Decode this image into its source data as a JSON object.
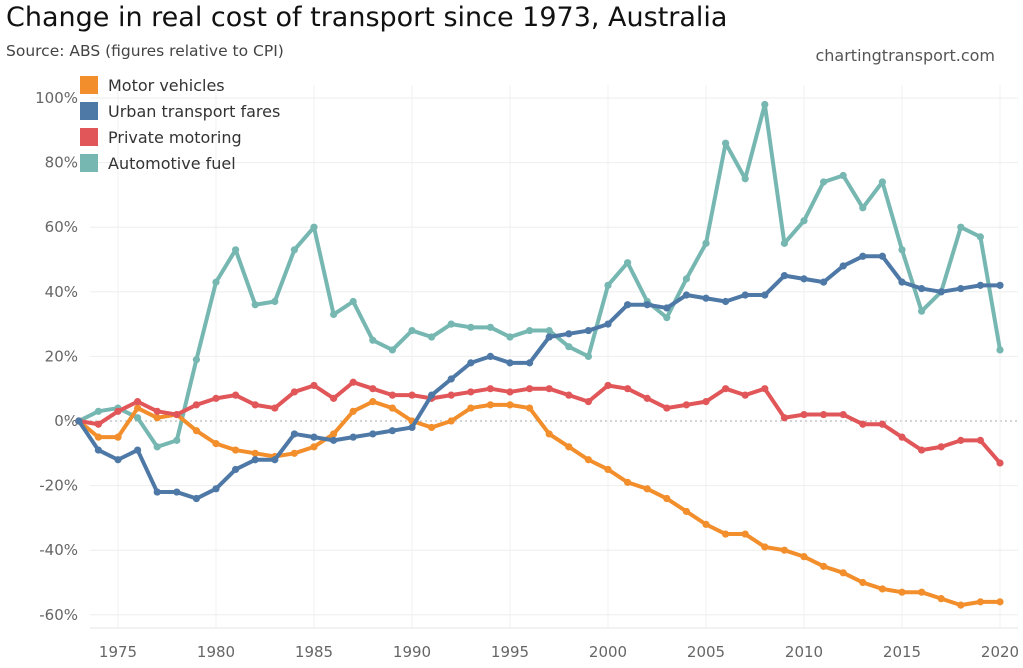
{
  "header": {
    "title": "Change in real cost of transport since 1973, Australia",
    "subtitle": "Source: ABS (figures relative to CPI)",
    "credit": "chartingtransport.com"
  },
  "chart_data": {
    "type": "line",
    "title": "Change in real cost of transport since 1973, Australia",
    "subtitle": "Source: ABS (figures relative to CPI)",
    "xlabel": "",
    "ylabel": "",
    "xlim": [
      1973,
      2020
    ],
    "ylim": [
      -60,
      100
    ],
    "x_ticks": [
      "1975",
      "1980",
      "1985",
      "1990",
      "1995",
      "2000",
      "2005",
      "2010",
      "2015",
      "2020"
    ],
    "y_ticks": [
      "100%",
      "80%",
      "60%",
      "40%",
      "20%",
      "0%",
      "-20%",
      "-40%",
      "-60%"
    ],
    "grid": true,
    "legend_position": "top-left",
    "x": [
      1973,
      1974,
      1975,
      1976,
      1977,
      1978,
      1979,
      1980,
      1981,
      1982,
      1983,
      1984,
      1985,
      1986,
      1987,
      1988,
      1989,
      1990,
      1991,
      1992,
      1993,
      1994,
      1995,
      1996,
      1997,
      1998,
      1999,
      2000,
      2001,
      2002,
      2003,
      2004,
      2005,
      2006,
      2007,
      2008,
      2009,
      2010,
      2011,
      2012,
      2013,
      2014,
      2015,
      2016,
      2017,
      2018,
      2019,
      2020
    ],
    "series": [
      {
        "name": "Motor vehicles",
        "color": "#f28e2b",
        "values": [
          0,
          -5,
          -5,
          4,
          1,
          2,
          -3,
          -7,
          -9,
          -10,
          -11,
          -10,
          -8,
          -4,
          3,
          6,
          4,
          0,
          -2,
          0,
          4,
          5,
          5,
          4,
          -4,
          -8,
          -12,
          -15,
          -19,
          -21,
          -24,
          -28,
          -32,
          -35,
          -35,
          -39,
          -40,
          -42,
          -45,
          -47,
          -50,
          -52,
          -53,
          -53,
          -55,
          -57,
          -56,
          -56
        ]
      },
      {
        "name": "Urban transport fares",
        "color": "#4e79a7",
        "values": [
          0,
          -9,
          -12,
          -9,
          -22,
          -22,
          -24,
          -21,
          -15,
          -12,
          -12,
          -4,
          -5,
          -6,
          -5,
          -4,
          -3,
          -2,
          8,
          13,
          18,
          20,
          18,
          18,
          26,
          27,
          28,
          30,
          36,
          36,
          35,
          39,
          38,
          37,
          39,
          39,
          45,
          44,
          43,
          48,
          51,
          51,
          43,
          41,
          40,
          41,
          42,
          42
        ]
      },
      {
        "name": "Private motoring",
        "color": "#e15759",
        "values": [
          0,
          -1,
          3,
          6,
          3,
          2,
          5,
          7,
          8,
          5,
          4,
          9,
          11,
          7,
          12,
          10,
          8,
          8,
          7,
          8,
          9,
          10,
          9,
          10,
          10,
          8,
          6,
          11,
          10,
          7,
          4,
          5,
          6,
          10,
          8,
          10,
          1,
          2,
          2,
          2,
          -1,
          -1,
          -5,
          -9,
          -8,
          -6,
          -6,
          -13
        ]
      },
      {
        "name": "Automotive fuel",
        "color": "#76b7b2",
        "values": [
          0,
          3,
          4,
          1,
          -8,
          -6,
          19,
          43,
          53,
          36,
          37,
          53,
          60,
          33,
          37,
          25,
          22,
          28,
          26,
          30,
          29,
          29,
          26,
          28,
          28,
          23,
          20,
          42,
          49,
          37,
          32,
          44,
          55,
          86,
          75,
          98,
          55,
          62,
          74,
          76,
          66,
          74,
          53,
          34,
          40,
          60,
          57,
          22
        ]
      }
    ]
  }
}
